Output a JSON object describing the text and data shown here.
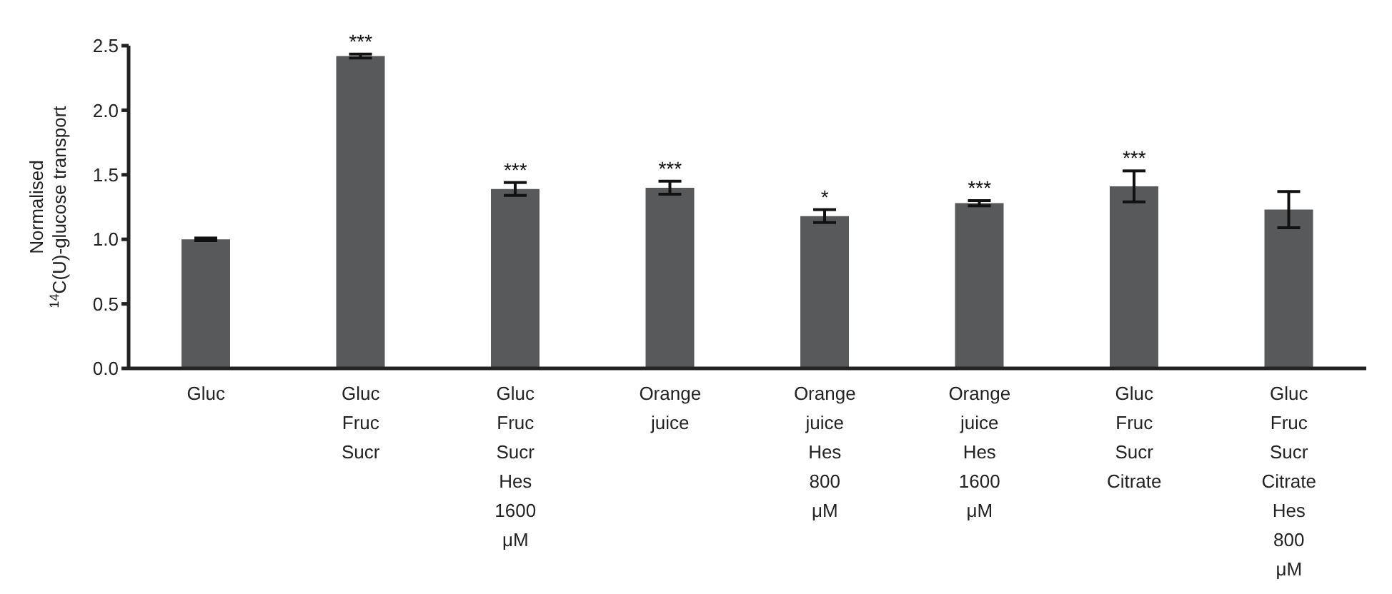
{
  "chart_data": {
    "type": "bar",
    "ylabel": "Normalised\n$^{14}$C(U)-glucose transport",
    "categories": [
      "Gluc",
      "Gluc\nFruc\nSucr",
      "Gluc\nFruc\nSucr\nHes\n1600\nμM",
      "Orange\njuice",
      "Orange\njuice\nHes\n800\nμM",
      "Orange\njuice\nHes\n1600\nμM",
      "Gluc\nFruc\nSucr\nCitrate",
      "Gluc\nFruc\nSucr\nCitrate\nHes\n800\nμM"
    ],
    "values": [
      1.0,
      2.42,
      1.39,
      1.4,
      1.18,
      1.28,
      1.41,
      1.23
    ],
    "errors": [
      0.01,
      0.015,
      0.05,
      0.05,
      0.05,
      0.02,
      0.12,
      0.14
    ],
    "color": "#58595b",
    "ylim": [
      0,
      2.5
    ],
    "yticks": [
      {
        "value": 0,
        "label": "0.0"
      },
      0.5,
      {
        "value": 1,
        "label": "1.0"
      },
      1.5,
      {
        "value": 2,
        "label": "2.0"
      },
      2.5
    ],
    "annotations": [
      {
        "text": "***",
        "x": "Gluc\nFruc\nSucr",
        "y": 2.435
      },
      {
        "text": "***",
        "x": "Gluc\nFruc\nSucr\nHes\n1600\nμM",
        "y": 1.44
      },
      {
        "text": "***",
        "x": "Orange\njuice",
        "y": 1.45
      },
      {
        "text": "*",
        "x": "Orange\njuice\nHes\n800\nμM",
        "y": 1.23
      },
      {
        "text": "***",
        "x": "Orange\njuice\nHes\n1600\nμM",
        "y": 1.3
      },
      {
        "text": "***",
        "x": "Gluc\nFruc\nSucr\nCitrate",
        "y": 1.53
      }
    ],
    "grid": false,
    "legend": false
  }
}
